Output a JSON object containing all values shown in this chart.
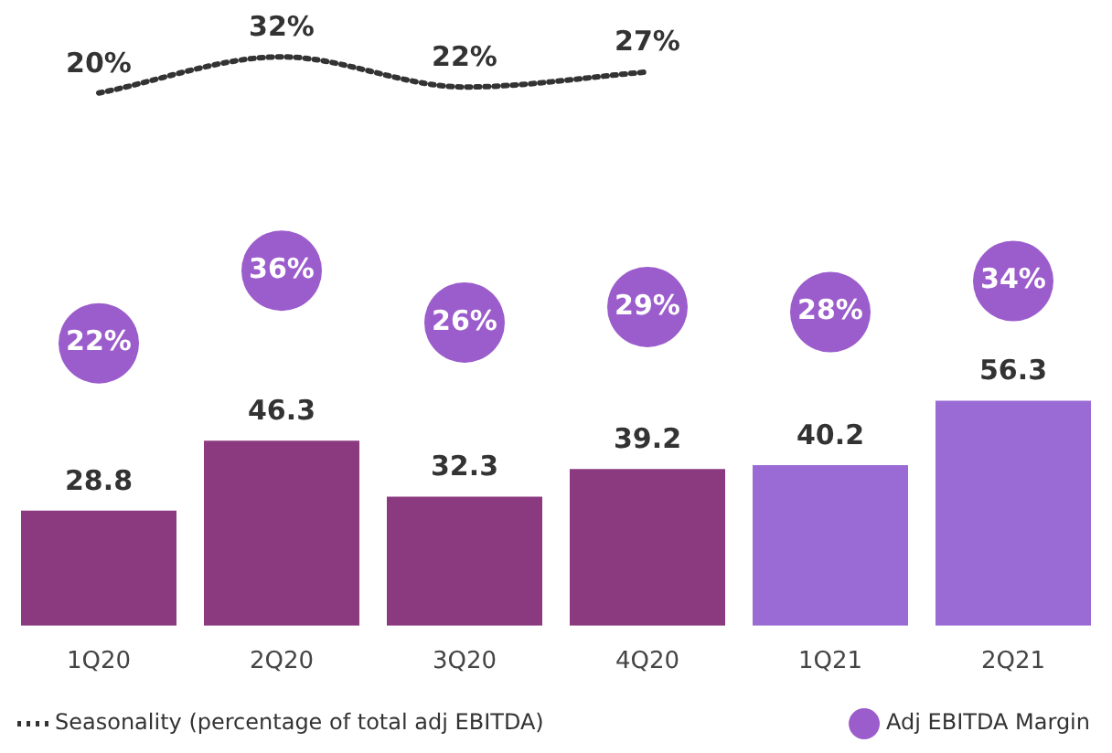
{
  "chart_data": [
    {
      "type": "line",
      "categories": [
        null,
        null,
        null,
        null,
        null,
        null
      ],
      "series": [
        {
          "name": "Seasonality (percentage of total adj EBITDA)",
          "color": "#333333",
          "line_style": "dotted",
          "marker": "none",
          "values": [
            20,
            32,
            22,
            27,
            null,
            null
          ],
          "value_labels": [
            "20%",
            "32%",
            "22%",
            "27%",
            null,
            null
          ]
        }
      ],
      "legend": "bottom left",
      "grid": false
    },
    {
      "type": "scatter",
      "categories": [
        null,
        null,
        null,
        null,
        null,
        null
      ],
      "series": [
        {
          "name": "Adj EBITDA Margin",
          "color": "#9b5ccc",
          "marker": "circle",
          "values": [
            22,
            36,
            26,
            29,
            28,
            34
          ],
          "value_labels": [
            "22%",
            "36%",
            "26%",
            "29%",
            "28%",
            "34%"
          ]
        }
      ],
      "legend": "bottom right",
      "grid": false
    },
    {
      "type": "bar",
      "categories": [
        "1Q20",
        "2Q20",
        "3Q20",
        "4Q20",
        "1Q21",
        "2Q21"
      ],
      "series": [
        {
          "colors": [
            "#8c3a80",
            "#8c3a80",
            "#8c3a80",
            "#8c3a80",
            "#9a6bd4",
            "#9a6bd4"
          ],
          "values": [
            28.8,
            46.3,
            32.3,
            39.2,
            40.2,
            56.3
          ],
          "value_labels": [
            "28.8",
            "46.3",
            "32.3",
            "39.2",
            "40.2",
            "56.3"
          ]
        }
      ],
      "grid": false
    }
  ]
}
